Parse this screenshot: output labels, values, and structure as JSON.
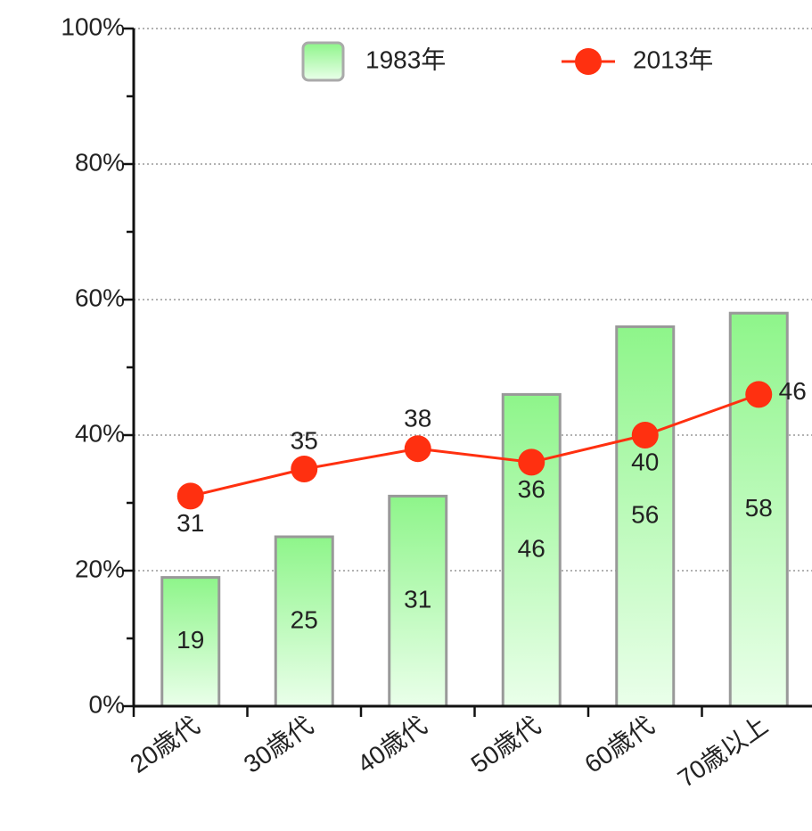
{
  "chart_data": {
    "type": "bar-line",
    "categories": [
      "20歳代",
      "30歳代",
      "40歳代",
      "50歳代",
      "60歳代",
      "70歳以上"
    ],
    "series": [
      {
        "name": "1983年",
        "type": "bar",
        "color": "#8ef58a",
        "values": [
          19,
          25,
          31,
          46,
          56,
          58
        ]
      },
      {
        "name": "2013年",
        "type": "line",
        "color": "#ff3010",
        "values": [
          31,
          35,
          38,
          36,
          40,
          46
        ]
      }
    ],
    "ylim": [
      0,
      100
    ],
    "yticks": [
      {
        "value": 0,
        "label": "0%"
      },
      {
        "value": 20,
        "label": "20%"
      },
      {
        "value": 40,
        "label": "40%"
      },
      {
        "value": 60,
        "label": "60%"
      },
      {
        "value": 80,
        "label": "80%"
      },
      {
        "value": 100,
        "label": "100%"
      }
    ],
    "minor_yticks": [
      10,
      30,
      50,
      70,
      90
    ],
    "grid": true,
    "legend": "top"
  }
}
